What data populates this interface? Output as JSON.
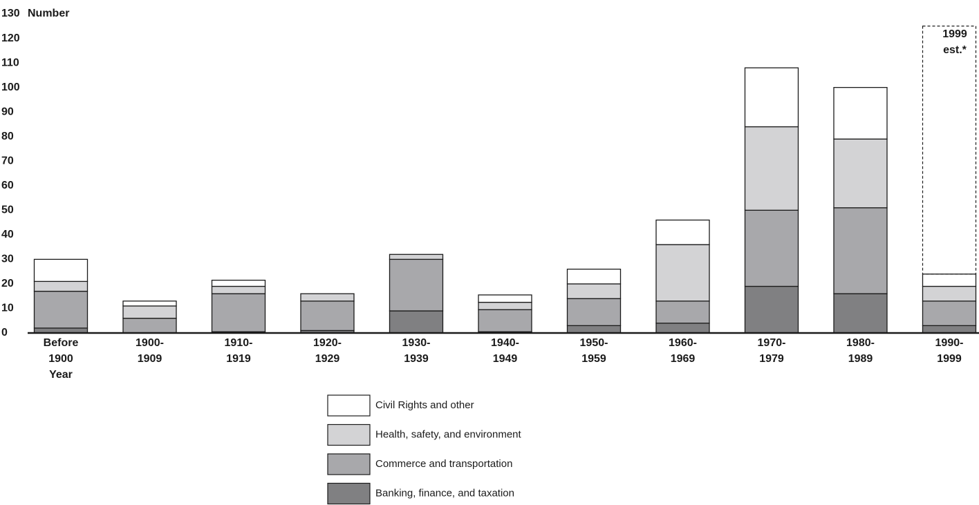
{
  "chart_data": {
    "type": "stacked_bar",
    "y_label": "Number",
    "x_label": "Year",
    "categories": [
      "Before\n1900",
      "1900-\n1909",
      "1910-\n1919",
      "1920-\n1929",
      "1930-\n1939",
      "1940-\n1949",
      "1950-\n1959",
      "1960-\n1969",
      "1970-\n1979",
      "1980-\n1989",
      "1990-\n1999"
    ],
    "series": [
      {
        "name": "Banking, finance, and taxation",
        "color": "#808082",
        "values": [
          2,
          0,
          0.5,
          1,
          9,
          0.5,
          3,
          4,
          19,
          16,
          3
        ]
      },
      {
        "name": "Commerce and transportation",
        "color": "#a8a8ab",
        "values": [
          15,
          6,
          15.5,
          12,
          21,
          9,
          11,
          9,
          31,
          35,
          10
        ]
      },
      {
        "name": "Health, safety, and environment",
        "color": "#d3d3d5",
        "values": [
          4,
          5,
          3,
          3,
          2,
          3,
          6,
          23,
          34,
          28,
          6
        ]
      },
      {
        "name": "Civil Rights and other",
        "color": "#ffffff",
        "values": [
          9,
          2,
          2.5,
          0,
          0,
          3,
          6,
          10,
          24,
          21,
          5
        ]
      }
    ],
    "estimate": {
      "label": "1999\nest.*",
      "value": 125
    },
    "ylim": [
      0,
      130
    ],
    "yticks": [
      0,
      10,
      20,
      30,
      40,
      50,
      60,
      70,
      80,
      90,
      100,
      110,
      120,
      130
    ]
  }
}
